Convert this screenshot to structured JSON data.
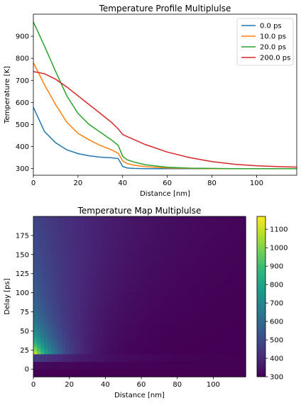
{
  "colors": {
    "series": [
      "#1f77b4",
      "#ff7f0e",
      "#2ca02c",
      "#d62728"
    ],
    "viridis": [
      "#440154",
      "#482878",
      "#3e4989",
      "#31688e",
      "#26828e",
      "#1f9e89",
      "#35b779",
      "#6ece58",
      "#b5de2b",
      "#fde725"
    ]
  },
  "chart_data": [
    {
      "type": "line",
      "title": "Temperature Profile Multiplulse",
      "xlabel": "Distance [nm]",
      "ylabel": "Temperature [K]",
      "xlim": [
        0,
        118
      ],
      "ylim": [
        270,
        1000
      ],
      "xticks": [
        0,
        20,
        40,
        60,
        80,
        100
      ],
      "yticks": [
        300,
        400,
        500,
        600,
        700,
        800,
        900
      ],
      "grid": false,
      "legend_position": "top-right",
      "x": [
        0,
        5,
        10,
        15,
        20,
        25,
        30,
        35,
        38,
        40,
        42,
        45,
        50,
        60,
        70,
        80,
        90,
        100,
        110,
        118
      ],
      "series": [
        {
          "name": "0.0 ps",
          "values": [
            578,
            468,
            417,
            385,
            368,
            358,
            352,
            349,
            346,
            310,
            303,
            301,
            300,
            300,
            300,
            300,
            300,
            300,
            300,
            300
          ]
        },
        {
          "name": "10.0 ps",
          "values": [
            780,
            680,
            590,
            510,
            460,
            430,
            405,
            385,
            370,
            335,
            323,
            316,
            309,
            303,
            301,
            300,
            300,
            300,
            300,
            300
          ]
        },
        {
          "name": "20.0 ps",
          "values": [
            965,
            855,
            740,
            630,
            550,
            500,
            465,
            430,
            405,
            356,
            340,
            330,
            318,
            306,
            302,
            301,
            300,
            300,
            300,
            300
          ]
        },
        {
          "name": "200.0 ps",
          "values": [
            740,
            730,
            705,
            670,
            630,
            590,
            550,
            510,
            480,
            455,
            445,
            432,
            410,
            375,
            350,
            332,
            320,
            313,
            309,
            307
          ]
        }
      ]
    },
    {
      "type": "heatmap",
      "title": "Temperature Map Multiplulse",
      "xlabel": "Distance [nm]",
      "ylabel": "Delay [ps]",
      "xlim": [
        0,
        118
      ],
      "ylim": [
        -10,
        200
      ],
      "xticks": [
        0,
        20,
        40,
        60,
        80,
        100
      ],
      "yticks": [
        0,
        25,
        50,
        75,
        100,
        125,
        150,
        175
      ],
      "colorbar": {
        "min": 300,
        "max": 1170,
        "ticks": [
          300,
          400,
          500,
          600,
          700,
          800,
          900,
          1000,
          1100
        ]
      }
    }
  ]
}
